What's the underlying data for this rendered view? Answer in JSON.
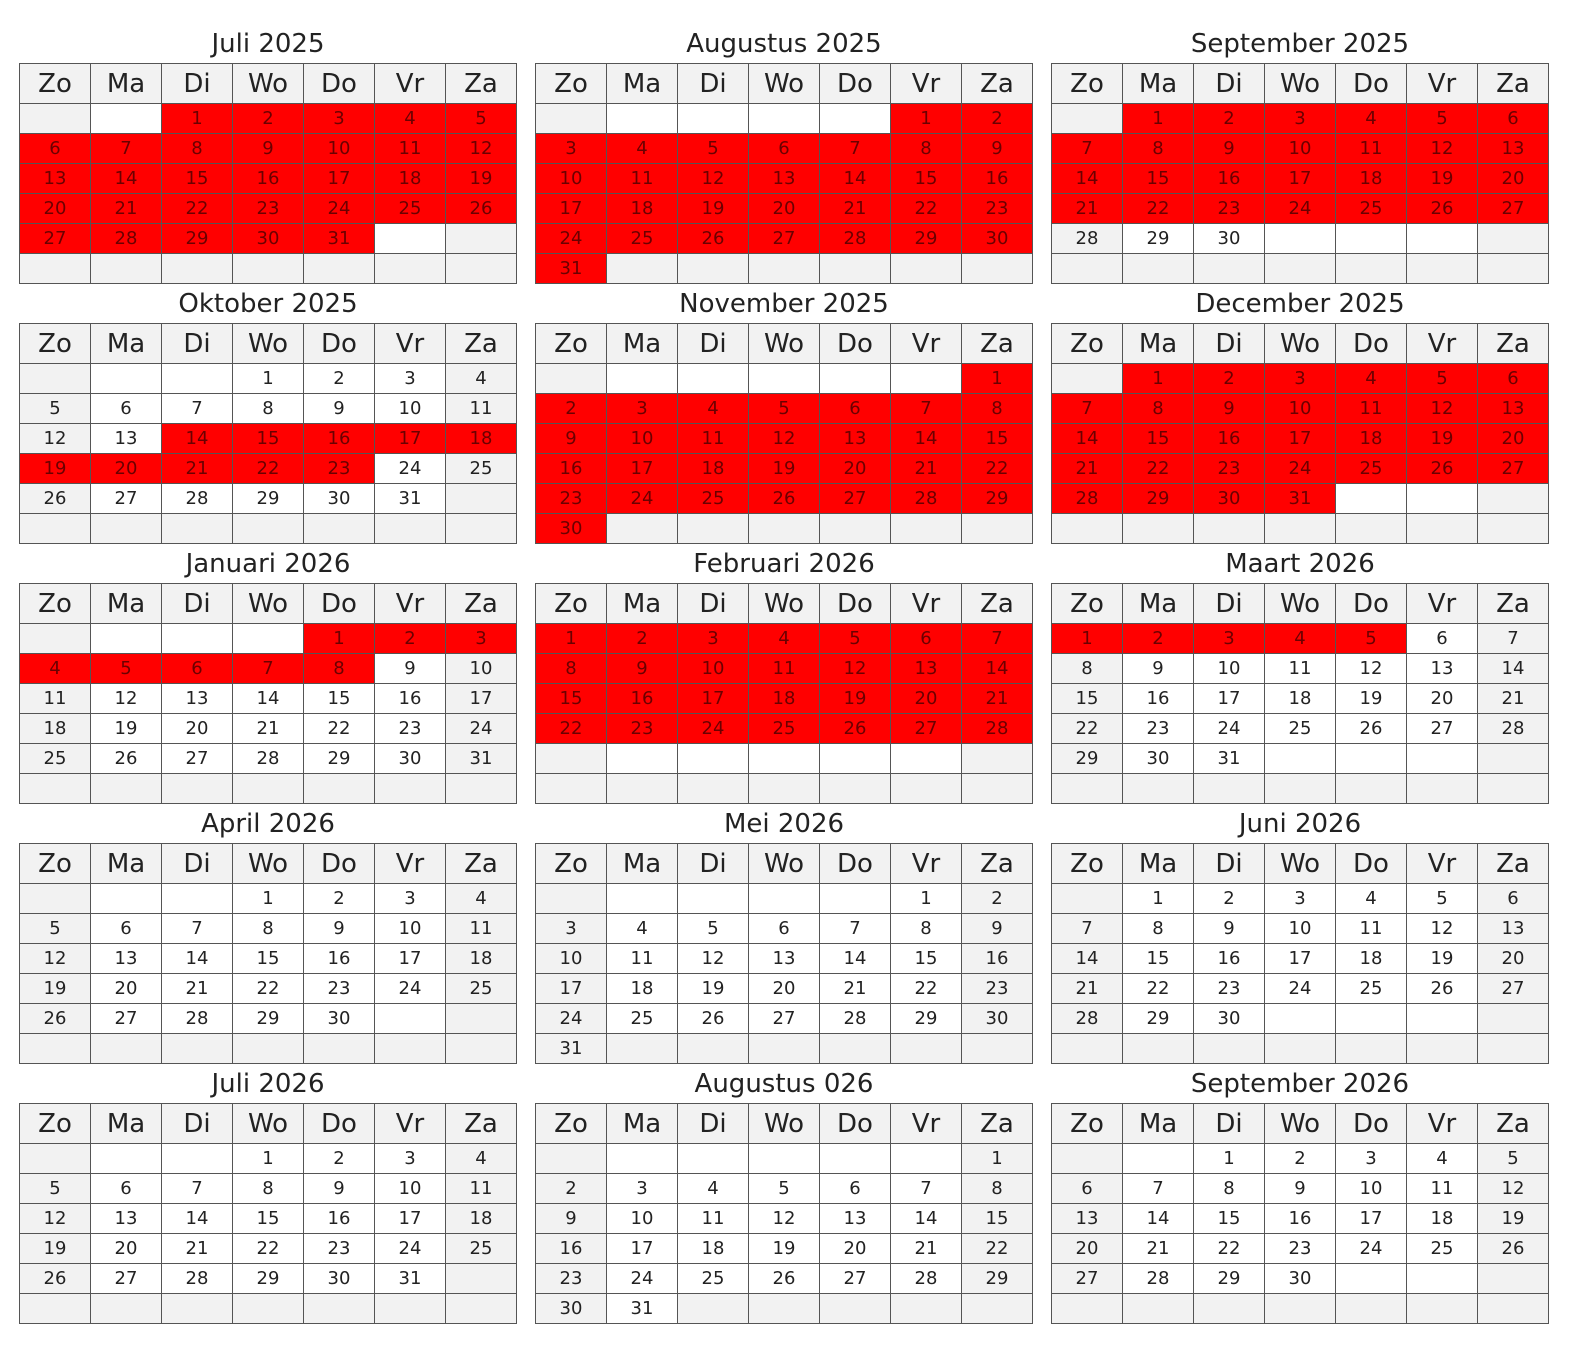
{
  "weekday_labels": [
    "Zo",
    "Ma",
    "Di",
    "Wo",
    "Do",
    "Vr",
    "Za"
  ],
  "highlight_color": "#ff0000",
  "months": [
    {
      "title": "Juli 2025",
      "start": 2,
      "days": 31,
      "marked": [
        [
          1,
          31
        ]
      ]
    },
    {
      "title": "Augustus 2025",
      "start": 5,
      "days": 31,
      "marked": [
        [
          1,
          31
        ]
      ]
    },
    {
      "title": "September 2025",
      "start": 1,
      "days": 30,
      "marked": [
        [
          1,
          27
        ]
      ]
    },
    {
      "title": "Oktober 2025",
      "start": 3,
      "days": 31,
      "marked": [
        [
          14,
          23
        ]
      ]
    },
    {
      "title": "November 2025",
      "start": 6,
      "days": 30,
      "marked": [
        [
          1,
          30
        ]
      ]
    },
    {
      "title": "December 2025",
      "start": 1,
      "days": 31,
      "marked": [
        [
          1,
          31
        ]
      ]
    },
    {
      "title": "Januari 2026",
      "start": 4,
      "days": 31,
      "marked": [
        [
          1,
          8
        ]
      ]
    },
    {
      "title": "Februari 2026",
      "start": 0,
      "days": 28,
      "marked": [
        [
          1,
          28
        ]
      ]
    },
    {
      "title": "Maart 2026",
      "start": 0,
      "days": 31,
      "marked": [
        [
          1,
          5
        ]
      ]
    },
    {
      "title": "April 2026",
      "start": 3,
      "days": 30,
      "marked": []
    },
    {
      "title": "Mei 2026",
      "start": 5,
      "days": 31,
      "marked": []
    },
    {
      "title": "Juni 2026",
      "start": 1,
      "days": 30,
      "marked": []
    },
    {
      "title": "Juli 2026",
      "start": 3,
      "days": 31,
      "marked": []
    },
    {
      "title": "Augustus 026",
      "start": 6,
      "days": 31,
      "marked": []
    },
    {
      "title": "September 2026",
      "start": 2,
      "days": 30,
      "marked": []
    }
  ]
}
